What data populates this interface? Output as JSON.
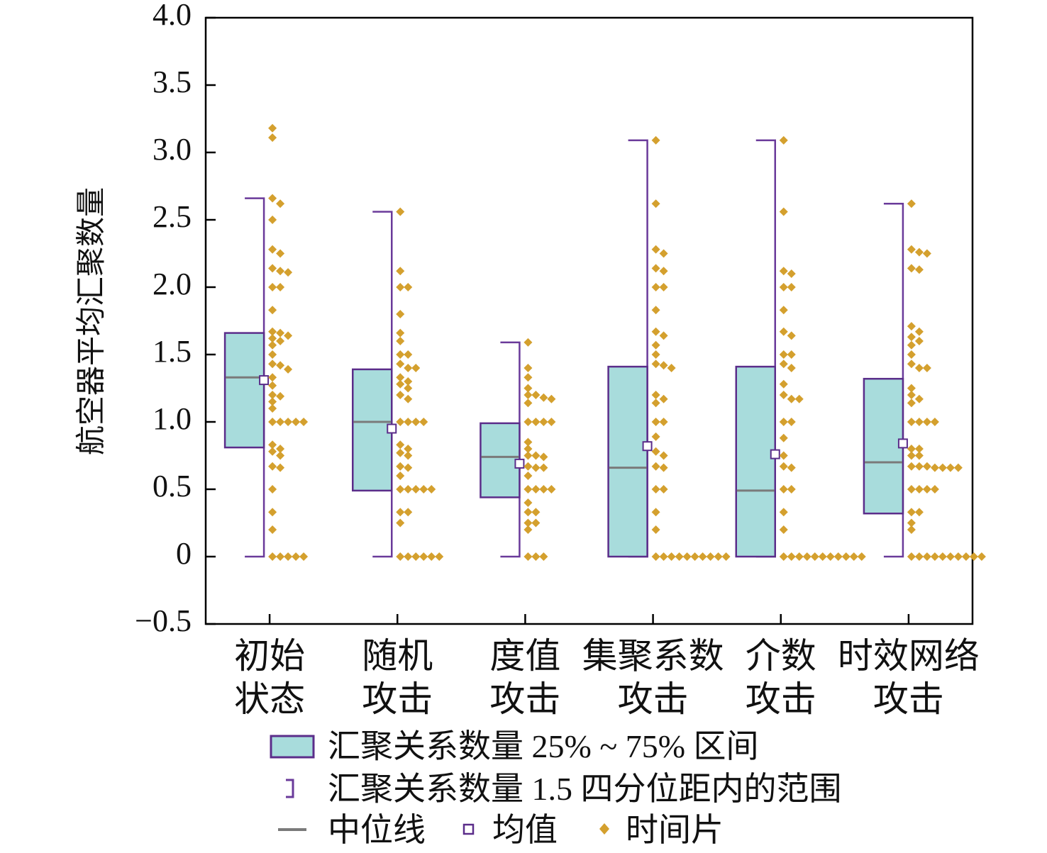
{
  "chart_data": {
    "type": "box",
    "ylabel": "航空器平均汇聚数量",
    "xlabel": "",
    "ylim": [
      -0.5,
      4.0
    ],
    "yticks": [
      "4.0",
      "3.5",
      "3.0",
      "2.5",
      "2.0",
      "1.5",
      "1.0",
      "0.5",
      "0",
      "−0.5"
    ],
    "ytick_values": [
      4.0,
      3.5,
      3.0,
      2.5,
      2.0,
      1.5,
      1.0,
      0.5,
      0,
      -0.5
    ],
    "categories": [
      {
        "line1": "初始",
        "line2": "状态"
      },
      {
        "line1": "随机",
        "line2": "攻击"
      },
      {
        "line1": "度值",
        "line2": "攻击"
      },
      {
        "line1": "集聚系数",
        "line2": "攻击"
      },
      {
        "line1": "介数",
        "line2": "攻击"
      },
      {
        "line1": "时效网络",
        "line2": "攻击"
      }
    ],
    "boxes": [
      {
        "q1": 0.81,
        "median": 1.33,
        "q3": 1.66,
        "mean": 1.31,
        "whisker_low": 0,
        "whisker_high": 2.66
      },
      {
        "q1": 0.49,
        "median": 1.0,
        "q3": 1.39,
        "mean": 0.95,
        "whisker_low": 0,
        "whisker_high": 2.56
      },
      {
        "q1": 0.44,
        "median": 0.74,
        "q3": 0.99,
        "mean": 0.69,
        "whisker_low": 0,
        "whisker_high": 1.59
      },
      {
        "q1": 0,
        "median": 0.66,
        "q3": 1.41,
        "mean": 0.82,
        "whisker_low": 0,
        "whisker_high": 3.09
      },
      {
        "q1": 0,
        "median": 0.49,
        "q3": 1.41,
        "mean": 0.76,
        "whisker_low": 0,
        "whisker_high": 3.09
      },
      {
        "q1": 0.32,
        "median": 0.7,
        "q3": 1.32,
        "mean": 0.84,
        "whisker_low": 0,
        "whisker_high": 2.62
      }
    ],
    "points": [
      [
        3.18,
        3.11,
        2.66,
        2.62,
        2.5,
        2.28,
        2.25,
        2.14,
        2.12,
        2.11,
        2.0,
        2.0,
        1.83,
        1.67,
        1.66,
        1.64,
        1.62,
        1.6,
        1.57,
        1.5,
        1.43,
        1.42,
        1.39,
        1.33,
        1.27,
        1.2,
        1.19,
        1.15,
        1.1,
        1.0,
        1.0,
        1.0,
        1.0,
        1.0,
        0.83,
        0.8,
        0.78,
        0.75,
        0.67,
        0.66,
        0.5,
        0.33,
        0.2,
        0,
        0,
        0,
        0,
        0
      ],
      [
        2.56,
        2.12,
        2.0,
        2.0,
        1.8,
        1.66,
        1.6,
        1.5,
        1.5,
        1.43,
        1.4,
        1.4,
        1.33,
        1.3,
        1.28,
        1.25,
        1.2,
        1.17,
        1.0,
        1.0,
        1.0,
        1.0,
        0.83,
        0.8,
        0.77,
        0.75,
        0.67,
        0.66,
        0.6,
        0.5,
        0.5,
        0.5,
        0.5,
        0.5,
        0.33,
        0.33,
        0.25,
        0,
        0,
        0,
        0,
        0,
        0
      ],
      [
        1.59,
        1.4,
        1.33,
        1.25,
        1.2,
        1.2,
        1.18,
        1.17,
        1.14,
        1.0,
        1.0,
        1.0,
        1.0,
        0.85,
        0.8,
        0.75,
        0.75,
        0.74,
        0.67,
        0.66,
        0.66,
        0.6,
        0.5,
        0.5,
        0.5,
        0.5,
        0.4,
        0.33,
        0.33,
        0.25,
        0.25,
        0.2,
        0,
        0,
        0
      ],
      [
        3.09,
        2.62,
        2.28,
        2.25,
        2.14,
        2.12,
        2.0,
        2.0,
        1.83,
        1.67,
        1.64,
        1.57,
        1.5,
        1.43,
        1.42,
        1.4,
        1.2,
        1.17,
        1.14,
        1.0,
        1.0,
        0.89,
        0.78,
        0.75,
        0.67,
        0.66,
        0.5,
        0.5,
        0.33,
        0.2,
        0,
        0,
        0,
        0,
        0,
        0,
        0,
        0,
        0,
        0
      ],
      [
        3.09,
        2.56,
        2.12,
        2.1,
        2.0,
        2.0,
        1.83,
        1.67,
        1.64,
        1.5,
        1.5,
        1.43,
        1.4,
        1.28,
        1.2,
        1.17,
        1.17,
        1.0,
        1.0,
        0.88,
        0.75,
        0.67,
        0.66,
        0.5,
        0.5,
        0.33,
        0.2,
        0,
        0,
        0,
        0,
        0,
        0,
        0,
        0,
        0,
        0,
        0
      ],
      [
        2.62,
        2.28,
        2.26,
        2.25,
        2.14,
        2.13,
        1.71,
        1.67,
        1.63,
        1.6,
        1.57,
        1.5,
        1.43,
        1.4,
        1.4,
        1.25,
        1.2,
        1.17,
        1.14,
        1.0,
        1.0,
        1.0,
        1.0,
        0.8,
        0.8,
        0.75,
        0.75,
        0.67,
        0.67,
        0.67,
        0.66,
        0.66,
        0.66,
        0.66,
        0.5,
        0.5,
        0.5,
        0.5,
        0.33,
        0.33,
        0.25,
        0.2,
        0,
        0,
        0,
        0,
        0,
        0,
        0,
        0,
        0,
        0
      ]
    ],
    "grid": false,
    "legend_position": "bottom",
    "legend": {
      "box_label": "汇聚关系数量 25% ~ 75% 区间",
      "whisker_label": "汇聚关系数量 1.5 四分位距内的范围",
      "median_label": "中位线",
      "mean_label": "均值",
      "points_label": "时间片"
    },
    "colors": {
      "box_fill": "#a8dcdc",
      "box_edge": "#5b2d8a",
      "whisker": "#6a3a9a",
      "median": "#7a7a7a",
      "mean": "#5b2d8a",
      "points": "#d4a02e",
      "axis": "#000000"
    }
  }
}
